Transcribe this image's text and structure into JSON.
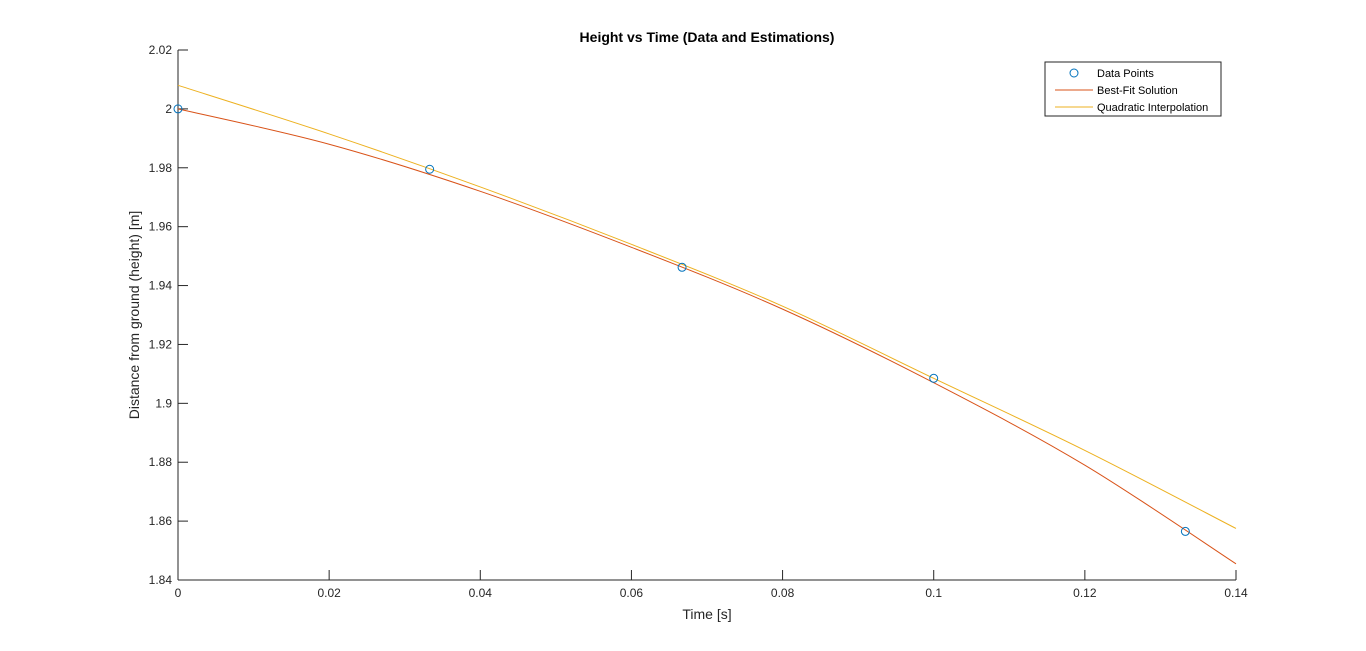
{
  "chart_data": {
    "type": "line",
    "title": "Height vs Time (Data and Estimations)",
    "xlabel": "Time [s]",
    "ylabel": "Distance from ground (height) [m]",
    "xlim": [
      0,
      0.14
    ],
    "ylim": [
      1.84,
      2.02
    ],
    "xticks": [
      0,
      0.02,
      0.04,
      0.06,
      0.08,
      0.1,
      0.12,
      0.14
    ],
    "yticks": [
      1.84,
      1.86,
      1.88,
      1.9,
      1.92,
      1.94,
      1.96,
      1.98,
      2,
      2.02
    ],
    "xtick_labels": [
      "0",
      "0.02",
      "0.04",
      "0.06",
      "0.08",
      "0.1",
      "0.12",
      "0.14"
    ],
    "ytick_labels": [
      "1.84",
      "1.86",
      "1.88",
      "1.9",
      "1.92",
      "1.94",
      "1.96",
      "1.98",
      "2",
      "2.02"
    ],
    "grid": false,
    "legend_position": "top-right",
    "series": [
      {
        "name": "Data Points",
        "kind": "scatter",
        "marker": "circle",
        "color": "#0072BD",
        "x": [
          0,
          0.0333,
          0.0667,
          0.1,
          0.1333
        ],
        "y": [
          2.0,
          1.9795,
          1.9462,
          1.9085,
          1.8565
        ]
      },
      {
        "name": "Best-Fit Solution",
        "kind": "line",
        "color": "#D95319",
        "x": [
          0,
          0.02,
          0.04,
          0.06,
          0.08,
          0.1,
          0.12,
          0.14
        ],
        "y": [
          2.0,
          1.988,
          1.972,
          1.953,
          1.932,
          1.907,
          1.879,
          1.8455
        ]
      },
      {
        "name": "Quadratic Interpolation",
        "kind": "line",
        "color": "#EDB120",
        "x": [
          0,
          0.02,
          0.04,
          0.06,
          0.08,
          0.1,
          0.12,
          0.14
        ],
        "y": [
          2.008,
          1.9915,
          1.9735,
          1.954,
          1.933,
          1.9085,
          1.884,
          1.8575
        ]
      }
    ]
  }
}
